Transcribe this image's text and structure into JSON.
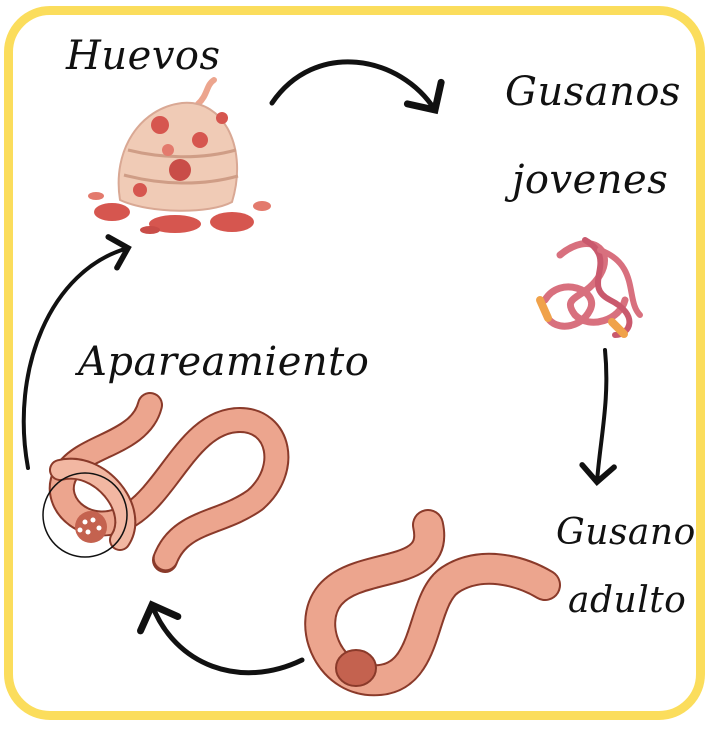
{
  "diagram": {
    "colors": {
      "border": "#fbdd5c",
      "worm": "#eca58e",
      "worm_ring": "#8a3a2a",
      "clitellum": "#c4624f",
      "egg": "#f0cbb6",
      "egg_spots": "#d6564f",
      "young_worm": "#d8707e",
      "young_worm_tip": "#f0a24a",
      "arrow": "#111111"
    },
    "stages": {
      "eggs": {
        "label": "Huevos",
        "icon": "egg-mound-icon"
      },
      "young": {
        "label_line1": "Gusanos",
        "label_line2": "jovenes",
        "icon": "young-worms-icon"
      },
      "adult": {
        "label_line1": "Gusano",
        "label_line2": "adulto",
        "icon": "adult-worm-icon"
      },
      "mating": {
        "label": "Apareamiento",
        "icon": "mating-worms-icon"
      }
    }
  }
}
